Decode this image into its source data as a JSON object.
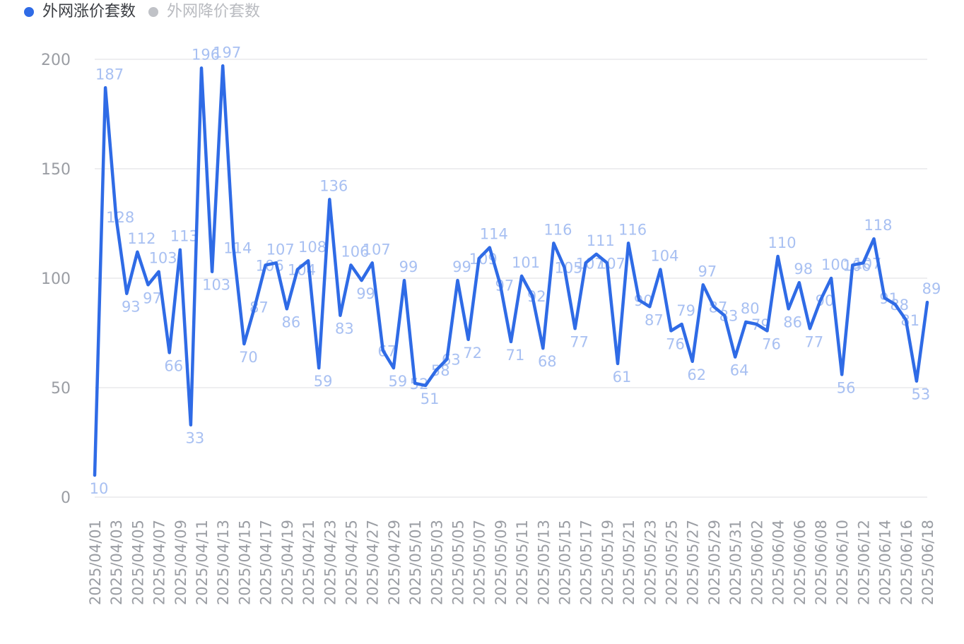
{
  "legend": [
    {
      "label": "外网涨价套数",
      "color": "#2f6be6",
      "active": true
    },
    {
      "label": "外网降价套数",
      "color": "#c0c2c7",
      "active": false
    }
  ],
  "colors": {
    "line": "#2f6be6",
    "data_label": "#a8c0f2",
    "axis_text": "#9a9da3",
    "grid": "#e8e8ec",
    "legend_active_text": "#3a3d42",
    "legend_inactive_text": "#b9bbc0"
  },
  "chart_data": {
    "type": "line",
    "ylim": [
      0,
      200
    ],
    "yticks": [
      0,
      50,
      100,
      150,
      200
    ],
    "grid": true,
    "legend_position": "top-left",
    "x": [
      "2025/04/01",
      "2025/04/02",
      "2025/04/03",
      "2025/04/04",
      "2025/04/05",
      "2025/04/06",
      "2025/04/07",
      "2025/04/08",
      "2025/04/09",
      "2025/04/10",
      "2025/04/11",
      "2025/04/12",
      "2025/04/13",
      "2025/04/14",
      "2025/04/15",
      "2025/04/16",
      "2025/04/17",
      "2025/04/18",
      "2025/04/19",
      "2025/04/20",
      "2025/04/21",
      "2025/04/22",
      "2025/04/23",
      "2025/04/24",
      "2025/04/25",
      "2025/04/26",
      "2025/04/27",
      "2025/04/28",
      "2025/04/29",
      "2025/04/30",
      "2025/05/01",
      "2025/05/02",
      "2025/05/03",
      "2025/05/04",
      "2025/05/05",
      "2025/05/06",
      "2025/05/07",
      "2025/05/08",
      "2025/05/09",
      "2025/05/10",
      "2025/05/11",
      "2025/05/12",
      "2025/05/13",
      "2025/05/14",
      "2025/05/15",
      "2025/05/16",
      "2025/05/17",
      "2025/05/18",
      "2025/05/19",
      "2025/05/20",
      "2025/05/21",
      "2025/05/22",
      "2025/05/23",
      "2025/05/24",
      "2025/05/25",
      "2025/05/26",
      "2025/05/27",
      "2025/05/28",
      "2025/05/29",
      "2025/05/30",
      "2025/05/31",
      "2025/06/01",
      "2025/06/02",
      "2025/06/03",
      "2025/06/04",
      "2025/06/05",
      "2025/06/06",
      "2025/06/07",
      "2025/06/08",
      "2025/06/09",
      "2025/06/10",
      "2025/06/11",
      "2025/06/12",
      "2025/06/13",
      "2025/06/14",
      "2025/06/15",
      "2025/06/16",
      "2025/06/17",
      "2025/06/18"
    ],
    "xtick_labels": [
      "2025/04/01",
      "2025/04/03",
      "2025/04/05",
      "2025/04/07",
      "2025/04/09",
      "2025/04/11",
      "2025/04/13",
      "2025/04/15",
      "2025/04/17",
      "2025/04/19",
      "2025/04/21",
      "2025/04/23",
      "2025/04/25",
      "2025/04/27",
      "2025/04/29",
      "2025/05/01",
      "2025/05/03",
      "2025/05/05",
      "2025/05/07",
      "2025/05/09",
      "2025/05/11",
      "2025/05/13",
      "2025/05/15",
      "2025/05/17",
      "2025/05/19",
      "2025/05/21",
      "2025/05/23",
      "2025/05/25",
      "2025/05/27",
      "2025/05/29",
      "2025/05/31",
      "2025/06/02",
      "2025/06/04",
      "2025/06/06",
      "2025/06/08",
      "2025/06/10",
      "2025/06/12",
      "2025/06/14",
      "2025/06/16",
      "2025/06/18"
    ],
    "series": [
      {
        "name": "外网涨价套数",
        "values": [
          10,
          187,
          128,
          93,
          112,
          97,
          103,
          66,
          113,
          33,
          196,
          103,
          197,
          114,
          70,
          87,
          106,
          107,
          86,
          104,
          108,
          59,
          136,
          83,
          106,
          99,
          107,
          67,
          59,
          99,
          52,
          51,
          58,
          63,
          99,
          72,
          109,
          114,
          97,
          71,
          101,
          92,
          68,
          116,
          105,
          77,
          107,
          111,
          107,
          61,
          116,
          90,
          87,
          104,
          76,
          79,
          62,
          97,
          87,
          83,
          64,
          80,
          79,
          76,
          110,
          86,
          98,
          77,
          90,
          100,
          56,
          106,
          107,
          118,
          91,
          88,
          81,
          53,
          89
        ]
      }
    ]
  }
}
